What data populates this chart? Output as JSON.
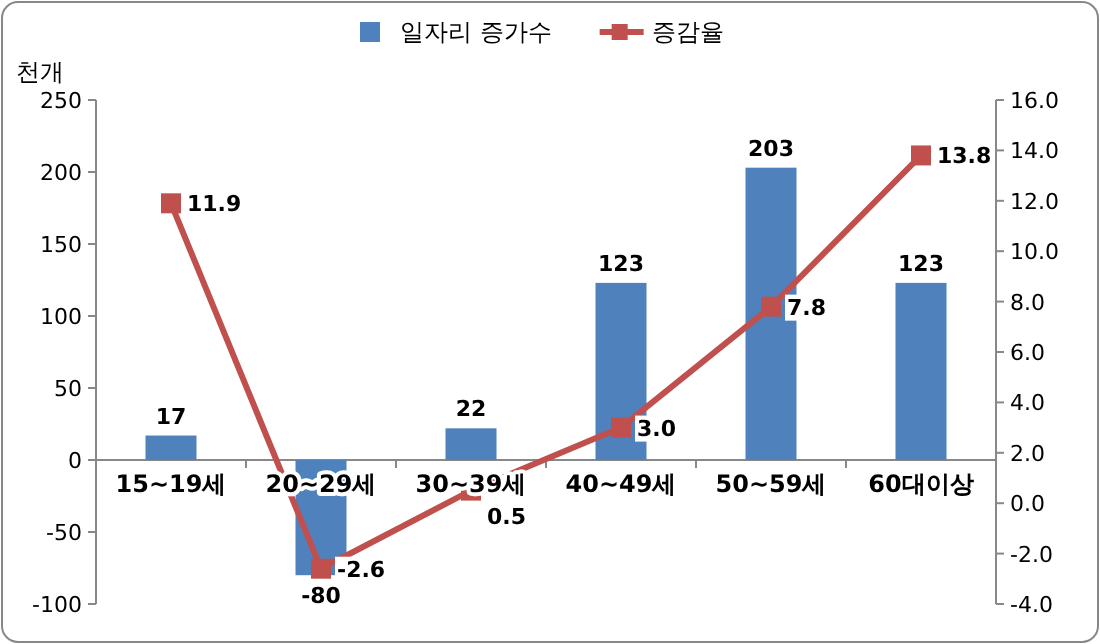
{
  "chart_data": {
    "type": "bar",
    "ylabel": "천개",
    "categories": [
      "15~19세",
      "20~29세",
      "30~39세",
      "40~49세",
      "50~59세",
      "60대이상"
    ],
    "series": [
      {
        "name": "일자리 증가수",
        "color": "#4f81bd",
        "values": [
          17,
          -80,
          22,
          123,
          203,
          123
        ],
        "value_labels": [
          "17",
          "-80",
          "22",
          "123",
          "203",
          "123"
        ]
      },
      {
        "name": "증감율",
        "type": "line",
        "axis": "y2",
        "color": "#c0504d",
        "marker": "square",
        "values": [
          11.9,
          -2.6,
          0.5,
          3.0,
          7.8,
          13.8
        ],
        "value_labels": [
          "11.9",
          "-2.6",
          "0.5",
          "3.0",
          "7.8",
          "13.8"
        ]
      }
    ],
    "ylim": [
      -100,
      250
    ],
    "yticks": [
      -100,
      -50,
      0,
      50,
      100,
      150,
      200,
      250
    ],
    "y2lim": [
      -4.0,
      16.0
    ],
    "y2ticks": [
      {
        "value": -4,
        "label": "-4.0"
      },
      {
        "value": -2,
        "label": "-2.0"
      },
      {
        "value": 0,
        "label": "0.0"
      },
      {
        "value": 2,
        "label": "2.0"
      },
      {
        "value": 4,
        "label": "4.0"
      },
      {
        "value": 6,
        "label": "6.0"
      },
      {
        "value": 8,
        "label": "8.0"
      },
      {
        "value": 10,
        "label": "10.0"
      },
      {
        "value": 12,
        "label": "12.0"
      },
      {
        "value": 14,
        "label": "14.0"
      },
      {
        "value": 16,
        "label": "16.0"
      }
    ],
    "legend": "top"
  }
}
